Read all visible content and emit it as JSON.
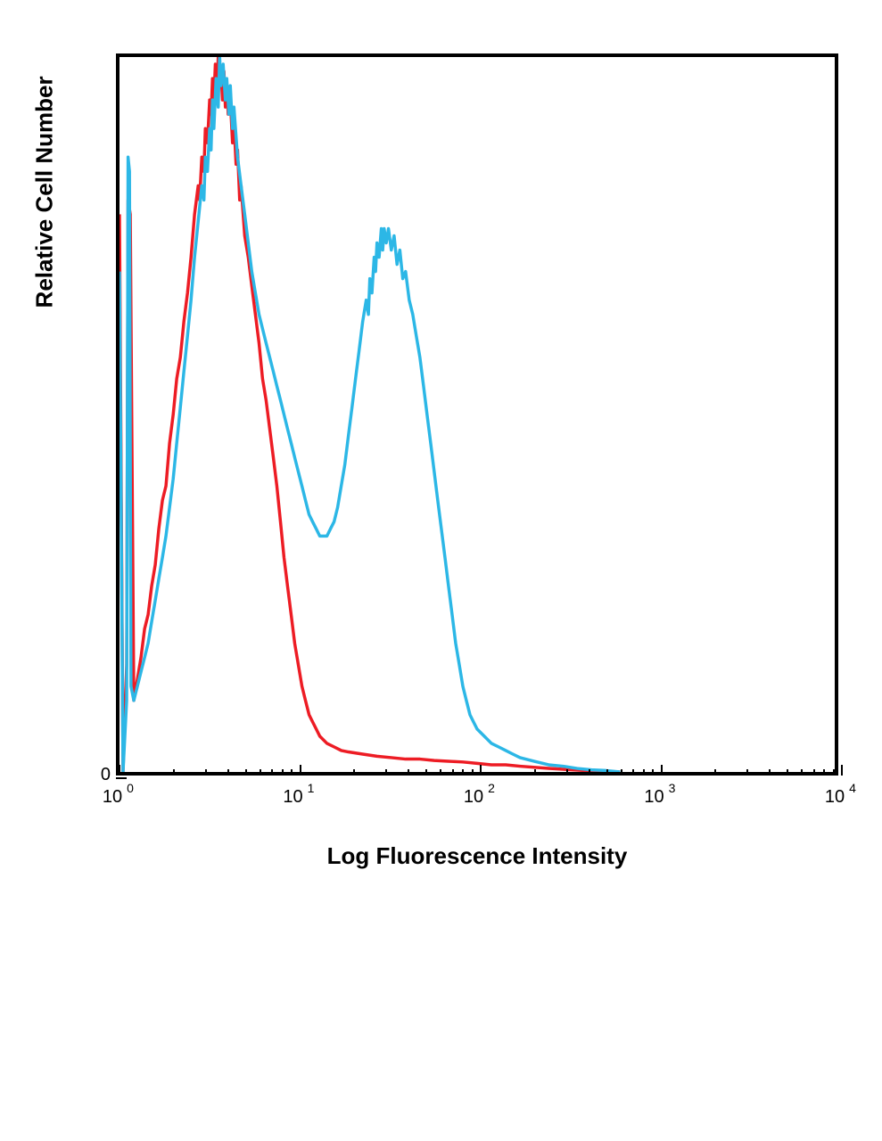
{
  "chart": {
    "type": "histogram",
    "xlabel": "Log Fluorescence Intensity",
    "ylabel": "Relative Cell Number",
    "xlabel_fontsize": 26,
    "ylabel_fontsize": 26,
    "tick_fontsize": 20,
    "exp_fontsize": 14,
    "x_scale": "log",
    "x_min_exp": 0,
    "x_max_exp": 4,
    "x_ticks": [
      {
        "base": "10",
        "exp": "0",
        "frac": 0.0
      },
      {
        "base": "10",
        "exp": "1",
        "frac": 0.25
      },
      {
        "base": "10",
        "exp": "2",
        "frac": 0.5
      },
      {
        "base": "10",
        "exp": "3",
        "frac": 0.75
      },
      {
        "base": "10",
        "exp": "4",
        "frac": 1.0
      }
    ],
    "y_scale": "linear",
    "y_min": 0,
    "y_max": 1.0,
    "y_tick_label": "0",
    "y_tick_frac": 1.0,
    "background_color": "#ffffff",
    "border_color": "#000000",
    "border_width": 4,
    "line_width": 3.5,
    "series": [
      {
        "name": "red",
        "color": "#ed1c24",
        "points": [
          [
            0.0,
            0.78
          ],
          [
            0.005,
            0.0
          ],
          [
            0.01,
            0.15
          ],
          [
            0.012,
            0.8
          ],
          [
            0.015,
            0.78
          ],
          [
            0.02,
            0.1
          ],
          [
            0.025,
            0.13
          ],
          [
            0.03,
            0.16
          ],
          [
            0.035,
            0.2
          ],
          [
            0.04,
            0.22
          ],
          [
            0.045,
            0.26
          ],
          [
            0.05,
            0.29
          ],
          [
            0.055,
            0.34
          ],
          [
            0.06,
            0.38
          ],
          [
            0.065,
            0.4
          ],
          [
            0.07,
            0.46
          ],
          [
            0.075,
            0.5
          ],
          [
            0.08,
            0.55
          ],
          [
            0.085,
            0.58
          ],
          [
            0.09,
            0.63
          ],
          [
            0.095,
            0.67
          ],
          [
            0.1,
            0.72
          ],
          [
            0.105,
            0.78
          ],
          [
            0.11,
            0.82
          ],
          [
            0.112,
            0.8
          ],
          [
            0.115,
            0.86
          ],
          [
            0.118,
            0.84
          ],
          [
            0.12,
            0.9
          ],
          [
            0.123,
            0.88
          ],
          [
            0.126,
            0.94
          ],
          [
            0.128,
            0.92
          ],
          [
            0.13,
            0.97
          ],
          [
            0.132,
            0.94
          ],
          [
            0.134,
            0.99
          ],
          [
            0.136,
            0.95
          ],
          [
            0.138,
            1.0
          ],
          [
            0.14,
            0.96
          ],
          [
            0.142,
            0.98
          ],
          [
            0.144,
            0.94
          ],
          [
            0.146,
            0.98
          ],
          [
            0.148,
            0.93
          ],
          [
            0.15,
            0.96
          ],
          [
            0.152,
            0.92
          ],
          [
            0.155,
            0.94
          ],
          [
            0.158,
            0.88
          ],
          [
            0.16,
            0.91
          ],
          [
            0.163,
            0.85
          ],
          [
            0.165,
            0.87
          ],
          [
            0.168,
            0.8
          ],
          [
            0.17,
            0.82
          ],
          [
            0.175,
            0.75
          ],
          [
            0.18,
            0.72
          ],
          [
            0.185,
            0.68
          ],
          [
            0.19,
            0.64
          ],
          [
            0.195,
            0.6
          ],
          [
            0.2,
            0.55
          ],
          [
            0.205,
            0.52
          ],
          [
            0.21,
            0.48
          ],
          [
            0.215,
            0.44
          ],
          [
            0.22,
            0.4
          ],
          [
            0.225,
            0.35
          ],
          [
            0.23,
            0.3
          ],
          [
            0.235,
            0.26
          ],
          [
            0.24,
            0.22
          ],
          [
            0.245,
            0.18
          ],
          [
            0.25,
            0.15
          ],
          [
            0.255,
            0.12
          ],
          [
            0.26,
            0.1
          ],
          [
            0.265,
            0.08
          ],
          [
            0.27,
            0.07
          ],
          [
            0.275,
            0.06
          ],
          [
            0.28,
            0.05
          ],
          [
            0.29,
            0.04
          ],
          [
            0.3,
            0.035
          ],
          [
            0.31,
            0.03
          ],
          [
            0.32,
            0.028
          ],
          [
            0.34,
            0.025
          ],
          [
            0.36,
            0.022
          ],
          [
            0.38,
            0.02
          ],
          [
            0.4,
            0.018
          ],
          [
            0.42,
            0.018
          ],
          [
            0.44,
            0.016
          ],
          [
            0.46,
            0.015
          ],
          [
            0.48,
            0.014
          ],
          [
            0.5,
            0.012
          ],
          [
            0.52,
            0.01
          ],
          [
            0.54,
            0.01
          ],
          [
            0.56,
            0.008
          ],
          [
            0.6,
            0.005
          ],
          [
            0.65,
            0.002
          ],
          [
            0.7,
            0.0
          ]
        ]
      },
      {
        "name": "blue",
        "color": "#2cb7e6",
        "points": [
          [
            0.0,
            0.7
          ],
          [
            0.005,
            0.0
          ],
          [
            0.01,
            0.1
          ],
          [
            0.012,
            0.86
          ],
          [
            0.014,
            0.84
          ],
          [
            0.016,
            0.12
          ],
          [
            0.02,
            0.1
          ],
          [
            0.025,
            0.12
          ],
          [
            0.03,
            0.14
          ],
          [
            0.035,
            0.16
          ],
          [
            0.04,
            0.18
          ],
          [
            0.045,
            0.21
          ],
          [
            0.05,
            0.24
          ],
          [
            0.055,
            0.27
          ],
          [
            0.06,
            0.3
          ],
          [
            0.065,
            0.33
          ],
          [
            0.07,
            0.37
          ],
          [
            0.075,
            0.41
          ],
          [
            0.08,
            0.46
          ],
          [
            0.085,
            0.51
          ],
          [
            0.09,
            0.56
          ],
          [
            0.095,
            0.61
          ],
          [
            0.1,
            0.66
          ],
          [
            0.105,
            0.72
          ],
          [
            0.11,
            0.77
          ],
          [
            0.115,
            0.82
          ],
          [
            0.118,
            0.8
          ],
          [
            0.12,
            0.86
          ],
          [
            0.123,
            0.84
          ],
          [
            0.126,
            0.9
          ],
          [
            0.128,
            0.87
          ],
          [
            0.13,
            0.94
          ],
          [
            0.132,
            0.9
          ],
          [
            0.135,
            0.97
          ],
          [
            0.138,
            0.93
          ],
          [
            0.14,
            1.0
          ],
          [
            0.142,
            0.96
          ],
          [
            0.145,
            0.99
          ],
          [
            0.148,
            0.94
          ],
          [
            0.15,
            0.97
          ],
          [
            0.153,
            0.92
          ],
          [
            0.155,
            0.96
          ],
          [
            0.158,
            0.9
          ],
          [
            0.16,
            0.93
          ],
          [
            0.165,
            0.86
          ],
          [
            0.17,
            0.82
          ],
          [
            0.175,
            0.78
          ],
          [
            0.18,
            0.74
          ],
          [
            0.185,
            0.7
          ],
          [
            0.19,
            0.67
          ],
          [
            0.195,
            0.64
          ],
          [
            0.2,
            0.62
          ],
          [
            0.205,
            0.6
          ],
          [
            0.21,
            0.58
          ],
          [
            0.215,
            0.56
          ],
          [
            0.22,
            0.54
          ],
          [
            0.225,
            0.52
          ],
          [
            0.23,
            0.5
          ],
          [
            0.235,
            0.48
          ],
          [
            0.24,
            0.46
          ],
          [
            0.245,
            0.44
          ],
          [
            0.25,
            0.42
          ],
          [
            0.255,
            0.4
          ],
          [
            0.26,
            0.38
          ],
          [
            0.265,
            0.36
          ],
          [
            0.27,
            0.35
          ],
          [
            0.275,
            0.34
          ],
          [
            0.28,
            0.33
          ],
          [
            0.285,
            0.33
          ],
          [
            0.29,
            0.33
          ],
          [
            0.295,
            0.34
          ],
          [
            0.3,
            0.35
          ],
          [
            0.305,
            0.37
          ],
          [
            0.31,
            0.4
          ],
          [
            0.315,
            0.43
          ],
          [
            0.32,
            0.47
          ],
          [
            0.325,
            0.51
          ],
          [
            0.33,
            0.55
          ],
          [
            0.335,
            0.59
          ],
          [
            0.34,
            0.63
          ],
          [
            0.345,
            0.66
          ],
          [
            0.348,
            0.64
          ],
          [
            0.35,
            0.69
          ],
          [
            0.353,
            0.67
          ],
          [
            0.356,
            0.72
          ],
          [
            0.358,
            0.7
          ],
          [
            0.36,
            0.74
          ],
          [
            0.363,
            0.72
          ],
          [
            0.366,
            0.76
          ],
          [
            0.368,
            0.73
          ],
          [
            0.37,
            0.76
          ],
          [
            0.373,
            0.74
          ],
          [
            0.376,
            0.76
          ],
          [
            0.38,
            0.73
          ],
          [
            0.384,
            0.75
          ],
          [
            0.388,
            0.71
          ],
          [
            0.392,
            0.73
          ],
          [
            0.396,
            0.69
          ],
          [
            0.4,
            0.7
          ],
          [
            0.405,
            0.66
          ],
          [
            0.41,
            0.64
          ],
          [
            0.415,
            0.61
          ],
          [
            0.42,
            0.58
          ],
          [
            0.425,
            0.54
          ],
          [
            0.43,
            0.5
          ],
          [
            0.435,
            0.46
          ],
          [
            0.44,
            0.42
          ],
          [
            0.445,
            0.38
          ],
          [
            0.45,
            0.34
          ],
          [
            0.455,
            0.3
          ],
          [
            0.46,
            0.26
          ],
          [
            0.465,
            0.22
          ],
          [
            0.47,
            0.18
          ],
          [
            0.475,
            0.15
          ],
          [
            0.48,
            0.12
          ],
          [
            0.485,
            0.1
          ],
          [
            0.49,
            0.08
          ],
          [
            0.495,
            0.07
          ],
          [
            0.5,
            0.06
          ],
          [
            0.51,
            0.05
          ],
          [
            0.52,
            0.04
          ],
          [
            0.53,
            0.035
          ],
          [
            0.54,
            0.03
          ],
          [
            0.55,
            0.025
          ],
          [
            0.56,
            0.02
          ],
          [
            0.58,
            0.015
          ],
          [
            0.6,
            0.01
          ],
          [
            0.62,
            0.008
          ],
          [
            0.64,
            0.005
          ],
          [
            0.66,
            0.003
          ],
          [
            0.68,
            0.002
          ],
          [
            0.7,
            0.0
          ]
        ]
      }
    ]
  }
}
